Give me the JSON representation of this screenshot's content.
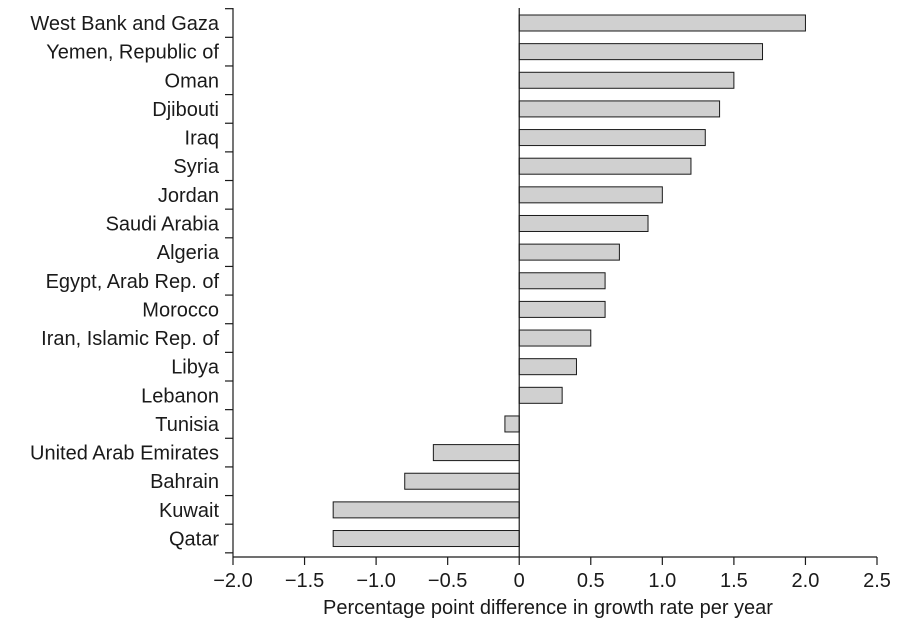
{
  "chart_data": {
    "type": "bar",
    "orientation": "horizontal",
    "categories": [
      "West Bank and Gaza",
      "Yemen, Republic of",
      "Oman",
      "Djibouti",
      "Iraq",
      "Syria",
      "Jordan",
      "Saudi Arabia",
      "Algeria",
      "Egypt, Arab Rep. of",
      "Morocco",
      "Iran, Islamic Rep. of",
      "Libya",
      "Lebanon",
      "Tunisia",
      "United Arab Emirates",
      "Bahrain",
      "Kuwait",
      "Qatar"
    ],
    "values": [
      2.0,
      1.7,
      1.5,
      1.4,
      1.3,
      1.2,
      1.0,
      0.9,
      0.7,
      0.6,
      0.6,
      0.5,
      0.4,
      0.3,
      -0.1,
      -0.6,
      -0.8,
      -1.3,
      -1.3
    ],
    "title": "",
    "xlabel": "Percentage point difference in growth rate per year",
    "ylabel": "",
    "xlim": [
      -2.0,
      2.5
    ],
    "xticks": [
      -2.0,
      -1.5,
      -1.0,
      -0.5,
      0,
      0.5,
      1.0,
      1.5,
      2.0,
      2.5
    ],
    "xtick_labels": [
      "−2.0",
      "−1.5",
      "−1.0",
      "−0.5",
      "0",
      "0.5",
      "1.0",
      "1.5",
      "2.0",
      "2.5"
    ],
    "grid": false,
    "legend": "none",
    "colors": {
      "bar_fill": "#d0d0d0",
      "bar_stroke": "#1a1a1a",
      "axis": "#1a1a1a",
      "text": "#1a1a1a"
    }
  }
}
